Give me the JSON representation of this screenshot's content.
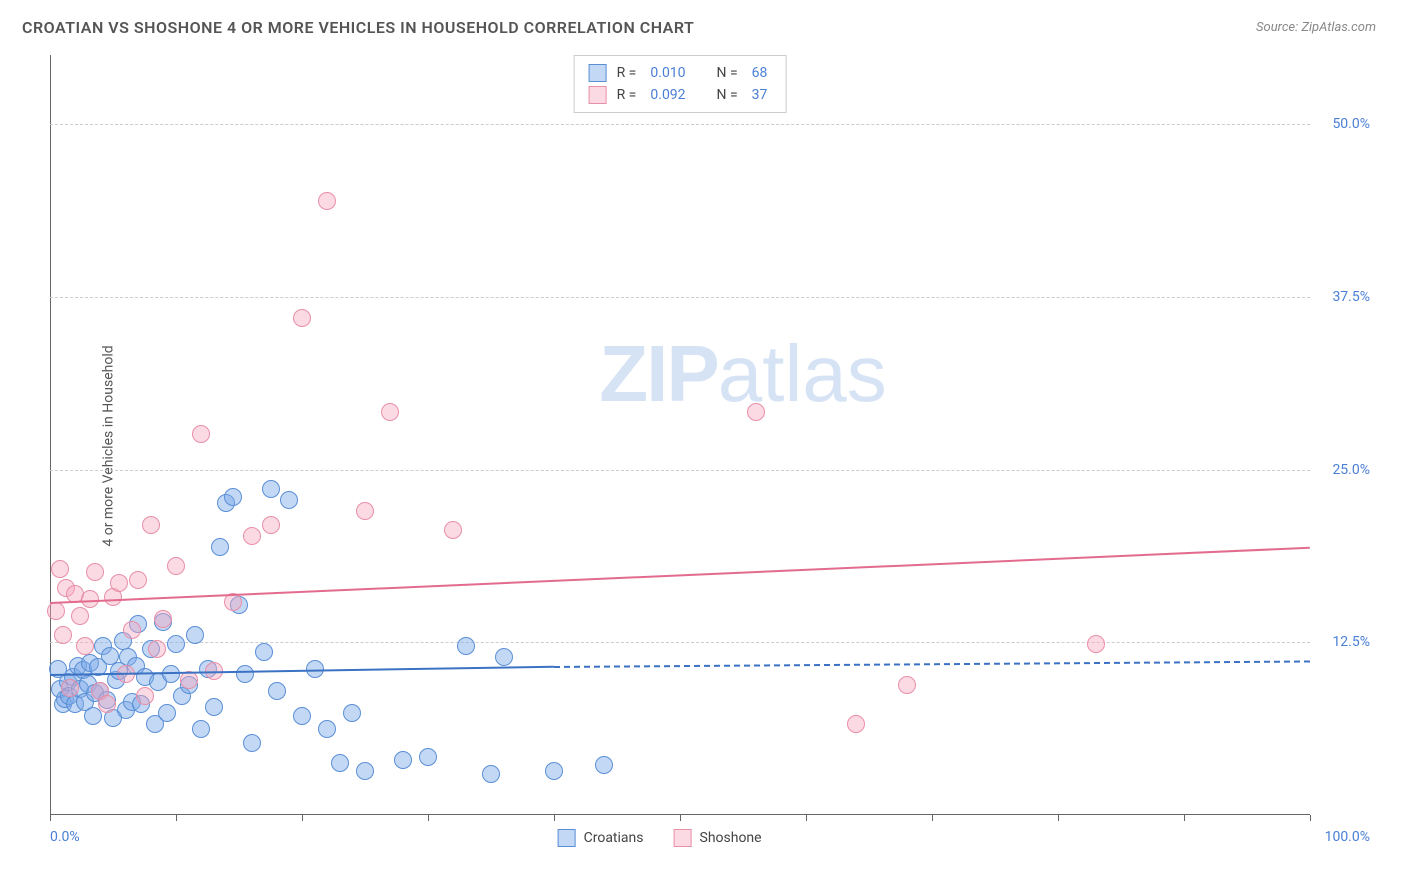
{
  "title": "CROATIAN VS SHOSHONE 4 OR MORE VEHICLES IN HOUSEHOLD CORRELATION CHART",
  "source_label": "Source: ",
  "source_value": "ZipAtlas.com",
  "ylabel": "4 or more Vehicles in Household",
  "watermark_prefix": "ZIP",
  "watermark_suffix": "atlas",
  "chart": {
    "type": "scatter",
    "background_color": "#ffffff",
    "grid_color": "#cccccc",
    "grid_dash": "4,4",
    "axis_color": "#666666",
    "label_color": "#4a7fd6",
    "xlim": [
      0,
      100
    ],
    "ylim": [
      0,
      55
    ],
    "yticks": [
      12.5,
      25.0,
      37.5,
      50.0
    ],
    "ytick_labels": [
      "12.5%",
      "25.0%",
      "37.5%",
      "50.0%"
    ],
    "xtick_positions": [
      0,
      10,
      20,
      30,
      40,
      50,
      60,
      70,
      80,
      90,
      100
    ],
    "x_left_label": "0.0%",
    "x_right_label": "100.0%",
    "marker_radius": 9,
    "marker_border_width": 1.2,
    "line_width": 2
  },
  "series": [
    {
      "name": "Croatians",
      "fill_color": "rgba(122,169,232,0.45)",
      "stroke_color": "#5a8fd6",
      "line_color": "#3b72c4",
      "R": "0.010",
      "N": "68",
      "trend": {
        "x1": 0,
        "y1": 10.2,
        "x2": 40,
        "y2": 10.8,
        "extend_x": 100,
        "extend_y": 11.2,
        "dash_after": true
      },
      "points": [
        [
          0.6,
          10.6
        ],
        [
          0.8,
          9.1
        ],
        [
          1.0,
          8.0
        ],
        [
          1.2,
          8.4
        ],
        [
          1.4,
          9.6
        ],
        [
          1.5,
          8.6
        ],
        [
          1.8,
          10.0
        ],
        [
          2.0,
          8.0
        ],
        [
          2.2,
          10.8
        ],
        [
          2.4,
          9.1
        ],
        [
          2.6,
          10.5
        ],
        [
          2.8,
          8.2
        ],
        [
          3.0,
          9.5
        ],
        [
          3.2,
          11.0
        ],
        [
          3.4,
          7.2
        ],
        [
          3.6,
          8.8
        ],
        [
          3.8,
          10.7
        ],
        [
          4.0,
          9.0
        ],
        [
          4.2,
          12.2
        ],
        [
          4.5,
          8.3
        ],
        [
          4.8,
          11.5
        ],
        [
          5.0,
          7.0
        ],
        [
          5.2,
          9.8
        ],
        [
          5.5,
          10.4
        ],
        [
          5.8,
          12.6
        ],
        [
          6.0,
          7.6
        ],
        [
          6.2,
          11.4
        ],
        [
          6.5,
          8.2
        ],
        [
          6.8,
          10.8
        ],
        [
          7.0,
          13.8
        ],
        [
          7.2,
          8.0
        ],
        [
          7.5,
          10.0
        ],
        [
          8.0,
          12.0
        ],
        [
          8.3,
          6.6
        ],
        [
          8.6,
          9.6
        ],
        [
          9.0,
          14.0
        ],
        [
          9.3,
          7.4
        ],
        [
          9.6,
          10.2
        ],
        [
          10.0,
          12.4
        ],
        [
          10.5,
          8.6
        ],
        [
          11.0,
          9.4
        ],
        [
          11.5,
          13.0
        ],
        [
          12.0,
          6.2
        ],
        [
          12.5,
          10.6
        ],
        [
          13.0,
          7.8
        ],
        [
          13.5,
          19.4
        ],
        [
          14.0,
          22.6
        ],
        [
          14.5,
          23.0
        ],
        [
          15.0,
          15.2
        ],
        [
          15.5,
          10.2
        ],
        [
          16.0,
          5.2
        ],
        [
          17.0,
          11.8
        ],
        [
          17.5,
          23.6
        ],
        [
          18.0,
          9.0
        ],
        [
          19.0,
          22.8
        ],
        [
          20.0,
          7.2
        ],
        [
          21.0,
          10.6
        ],
        [
          22.0,
          6.2
        ],
        [
          23.0,
          3.8
        ],
        [
          24.0,
          7.4
        ],
        [
          25.0,
          3.2
        ],
        [
          28.0,
          4.0
        ],
        [
          30.0,
          4.2
        ],
        [
          33.0,
          12.2
        ],
        [
          35.0,
          3.0
        ],
        [
          36.0,
          11.4
        ],
        [
          40.0,
          3.2
        ],
        [
          44.0,
          3.6
        ]
      ]
    },
    {
      "name": "Shoshone",
      "fill_color": "rgba(245,167,190,0.42)",
      "stroke_color": "#e88fa8",
      "line_color": "#e26b8e",
      "R": "0.092",
      "N": "37",
      "trend": {
        "x1": 0,
        "y1": 15.4,
        "x2": 100,
        "y2": 19.4,
        "dash_after": false
      },
      "points": [
        [
          0.5,
          14.8
        ],
        [
          0.8,
          17.8
        ],
        [
          1.0,
          13.0
        ],
        [
          1.3,
          16.4
        ],
        [
          1.6,
          9.2
        ],
        [
          2.0,
          16.0
        ],
        [
          2.4,
          14.4
        ],
        [
          2.8,
          12.2
        ],
        [
          3.2,
          15.6
        ],
        [
          3.6,
          17.6
        ],
        [
          4.0,
          9.0
        ],
        [
          4.5,
          8.0
        ],
        [
          5.0,
          15.8
        ],
        [
          5.5,
          16.8
        ],
        [
          6.0,
          10.2
        ],
        [
          6.5,
          13.4
        ],
        [
          7.0,
          17.0
        ],
        [
          7.5,
          8.6
        ],
        [
          8.0,
          21.0
        ],
        [
          8.5,
          12.0
        ],
        [
          9.0,
          14.2
        ],
        [
          10.0,
          18.0
        ],
        [
          11.0,
          9.8
        ],
        [
          12.0,
          27.6
        ],
        [
          13.0,
          10.4
        ],
        [
          14.5,
          15.4
        ],
        [
          16.0,
          20.2
        ],
        [
          17.5,
          21.0
        ],
        [
          20.0,
          36.0
        ],
        [
          22.0,
          44.4
        ],
        [
          25.0,
          22.0
        ],
        [
          27.0,
          29.2
        ],
        [
          32.0,
          20.6
        ],
        [
          56.0,
          29.2
        ],
        [
          64.0,
          6.6
        ],
        [
          68.0,
          9.4
        ],
        [
          83.0,
          12.4
        ]
      ]
    }
  ],
  "legend_top": {
    "R_label": "R =",
    "N_label": "N ="
  },
  "legend_bottom": {
    "items": [
      "Croatians",
      "Shoshone"
    ]
  }
}
